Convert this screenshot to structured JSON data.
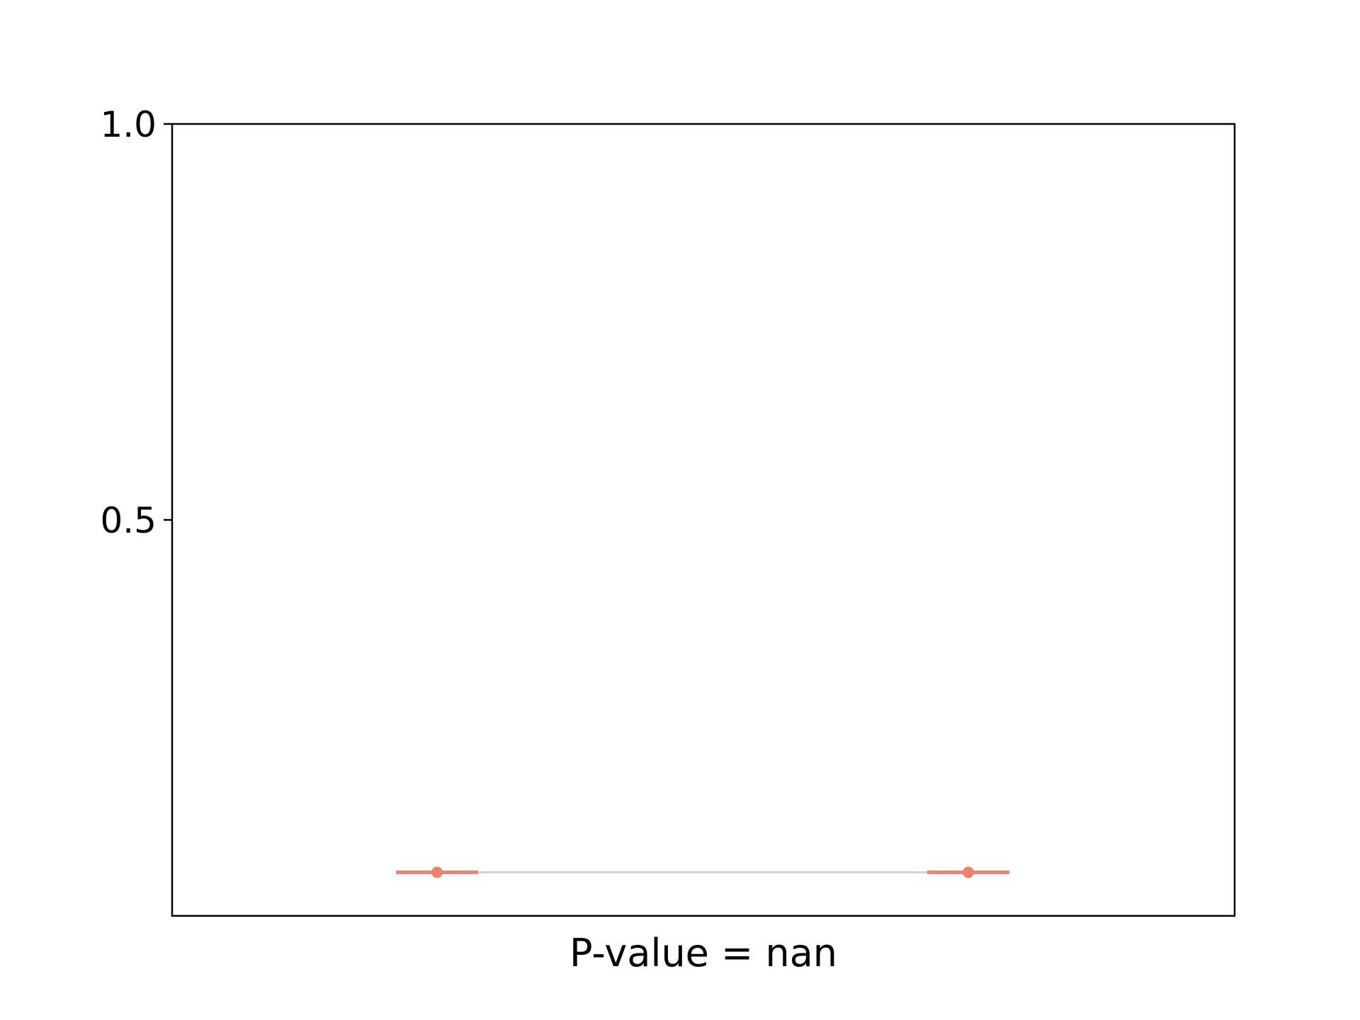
{
  "chart_data": {
    "type": "line",
    "xlabel": "P-value = nan",
    "ylabel": "",
    "title": "",
    "ylim": [
      0,
      1.0
    ],
    "yticks": [
      {
        "value": 1.0,
        "label": "1.0"
      },
      {
        "value": 0.5,
        "label": "0.5"
      }
    ],
    "grid": false,
    "points": [
      {
        "group": 0,
        "y": 0.055,
        "err_low": 0.055,
        "err_high": 0.055
      },
      {
        "group": 1,
        "y": 0.055,
        "err_low": 0.055,
        "err_high": 0.055
      }
    ],
    "colors": {
      "point": "#f47f6f",
      "errorbar": "#f47f6f",
      "connector": "#d3d3d3",
      "axes": "#000000"
    }
  }
}
